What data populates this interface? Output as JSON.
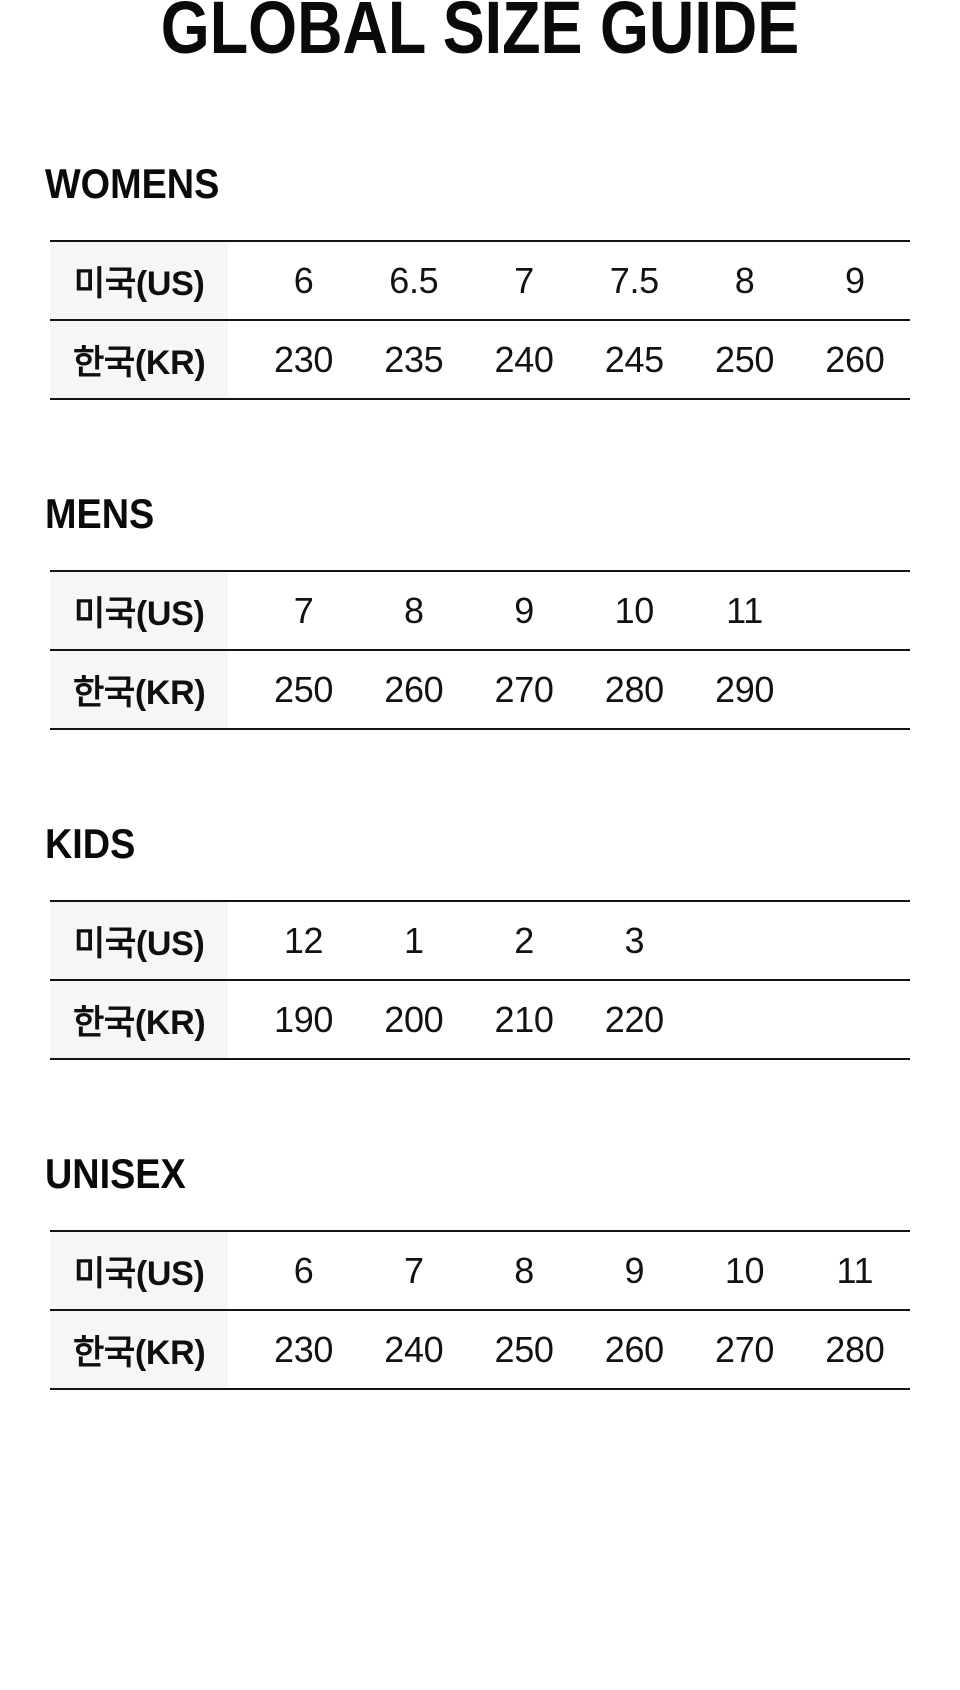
{
  "title": "GLOBAL SIZE GUIDE",
  "labels": {
    "us": "미국(US)",
    "kr": "한국(KR)"
  },
  "sections": [
    {
      "heading": "WOMENS",
      "us": [
        "6",
        "6.5",
        "7",
        "7.5",
        "8",
        "9"
      ],
      "kr": [
        "230",
        "235",
        "240",
        "245",
        "250",
        "260"
      ]
    },
    {
      "heading": "MENS",
      "us": [
        "7",
        "8",
        "9",
        "10",
        "11"
      ],
      "kr": [
        "250",
        "260",
        "270",
        "280",
        "290"
      ]
    },
    {
      "heading": "KIDS",
      "us": [
        "12",
        "1",
        "2",
        "3"
      ],
      "kr": [
        "190",
        "200",
        "210",
        "220"
      ]
    },
    {
      "heading": "UNISEX",
      "us": [
        "6",
        "7",
        "8",
        "9",
        "10",
        "11"
      ],
      "kr": [
        "230",
        "240",
        "250",
        "260",
        "270",
        "280"
      ]
    }
  ],
  "colors": {
    "background": "#ffffff",
    "label_cell_bg": "#f6f6f6",
    "rule": "#141414",
    "text": "#121212"
  }
}
